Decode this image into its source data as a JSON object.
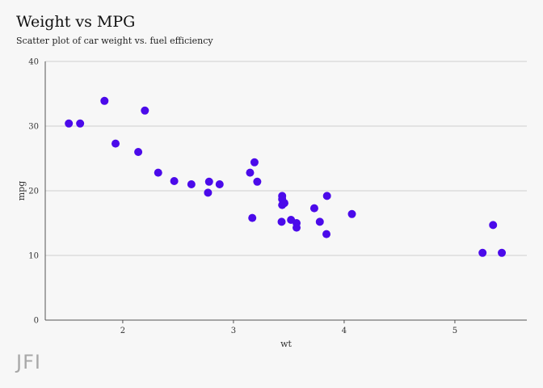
{
  "chart_data": {
    "type": "scatter",
    "title": "Weight vs MPG",
    "subtitle": "Scatter plot of car weight vs. fuel efficiency",
    "xlabel": "wt",
    "ylabel": "mpg",
    "xlim": [
      1.3,
      5.65
    ],
    "ylim": [
      0,
      40
    ],
    "xticks": [
      2,
      3,
      4,
      5
    ],
    "yticks": [
      0,
      10,
      20,
      30,
      40
    ],
    "grid": "horizontal",
    "marker_color": "#4b0aea",
    "gridline_color": "#cfcfcf",
    "points": [
      {
        "x": 1.513,
        "y": 30.4
      },
      {
        "x": 1.615,
        "y": 30.4
      },
      {
        "x": 1.835,
        "y": 33.9
      },
      {
        "x": 1.935,
        "y": 27.3
      },
      {
        "x": 2.14,
        "y": 26.0
      },
      {
        "x": 2.2,
        "y": 32.4
      },
      {
        "x": 2.32,
        "y": 22.8
      },
      {
        "x": 2.465,
        "y": 21.5
      },
      {
        "x": 2.62,
        "y": 21.0
      },
      {
        "x": 2.77,
        "y": 19.7
      },
      {
        "x": 2.78,
        "y": 21.4
      },
      {
        "x": 2.875,
        "y": 21.0
      },
      {
        "x": 3.15,
        "y": 22.8
      },
      {
        "x": 3.17,
        "y": 15.8
      },
      {
        "x": 3.19,
        "y": 24.4
      },
      {
        "x": 3.215,
        "y": 21.4
      },
      {
        "x": 3.435,
        "y": 15.2
      },
      {
        "x": 3.44,
        "y": 19.2
      },
      {
        "x": 3.44,
        "y": 18.7
      },
      {
        "x": 3.44,
        "y": 17.8
      },
      {
        "x": 3.46,
        "y": 18.1
      },
      {
        "x": 3.52,
        "y": 15.5
      },
      {
        "x": 3.57,
        "y": 15.0
      },
      {
        "x": 3.57,
        "y": 14.3
      },
      {
        "x": 3.73,
        "y": 17.3
      },
      {
        "x": 3.78,
        "y": 15.2
      },
      {
        "x": 3.84,
        "y": 13.3
      },
      {
        "x": 3.845,
        "y": 19.2
      },
      {
        "x": 4.07,
        "y": 16.4
      },
      {
        "x": 5.25,
        "y": 10.4
      },
      {
        "x": 5.345,
        "y": 14.7
      },
      {
        "x": 5.424,
        "y": 10.4
      }
    ]
  },
  "brand": {
    "logo_text": "JFI"
  }
}
